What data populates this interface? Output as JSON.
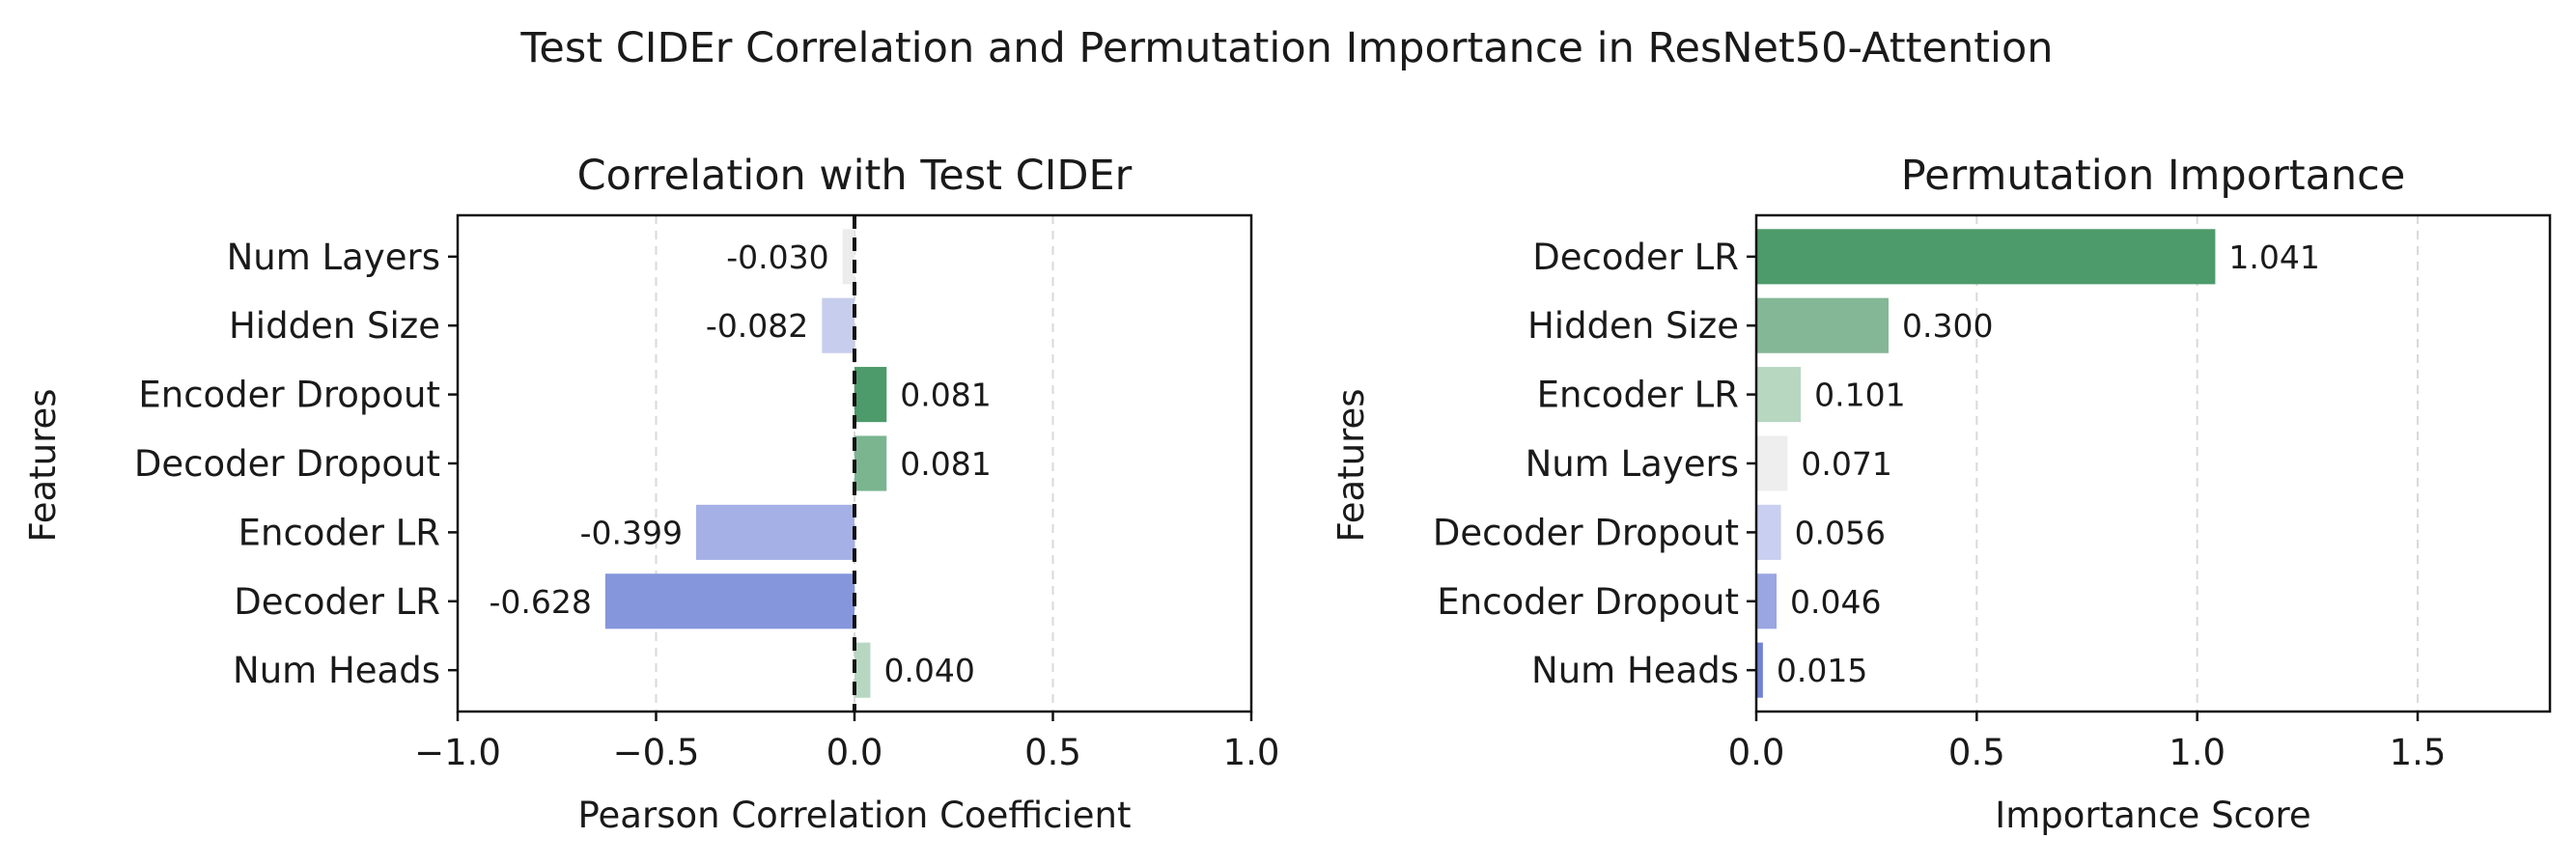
{
  "figure": {
    "title": "Test CIDEr Correlation and Permutation Importance in ResNet50-Attention"
  },
  "chart_data": [
    {
      "type": "bar",
      "orientation": "horizontal",
      "title": "Correlation with Test CIDEr",
      "xlabel": "Pearson Correlation Coefficient",
      "ylabel": "Features",
      "categories": [
        "Num Layers",
        "Hidden Size",
        "Encoder Dropout",
        "Decoder Dropout",
        "Encoder LR",
        "Decoder LR",
        "Num Heads"
      ],
      "values": [
        -0.03,
        -0.082,
        0.081,
        0.081,
        -0.399,
        -0.628,
        0.04
      ],
      "value_labels": [
        "-0.030",
        "-0.082",
        "0.081",
        "0.081",
        "-0.399",
        "-0.628",
        "0.040"
      ],
      "colors": [
        "#ececec",
        "#c7cdec",
        "#4d9a6a",
        "#7ab590",
        "#a5b0e6",
        "#8596dc",
        "#b7d7c1"
      ],
      "xlim": [
        -1.0,
        1.0
      ],
      "xticks": [
        -1.0,
        -0.5,
        0.0,
        0.5,
        1.0
      ],
      "xtick_labels": [
        "−1.0",
        "−0.5",
        "0.0",
        "0.5",
        "1.0"
      ],
      "zero_line": true,
      "grid": "vertical dashed"
    },
    {
      "type": "bar",
      "orientation": "horizontal",
      "title": "Permutation Importance",
      "xlabel": "Importance Score",
      "ylabel": "Features",
      "categories": [
        "Decoder LR",
        "Hidden Size",
        "Encoder LR",
        "Num Layers",
        "Decoder Dropout",
        "Encoder Dropout",
        "Num Heads"
      ],
      "values": [
        1.041,
        0.3,
        0.101,
        0.071,
        0.056,
        0.046,
        0.015
      ],
      "value_labels": [
        "1.041",
        "0.300",
        "0.101",
        "0.071",
        "0.056",
        "0.046",
        "0.015"
      ],
      "colors": [
        "#4d9a6a",
        "#84b796",
        "#b7d7c1",
        "#eeeeee",
        "#c9cff0",
        "#99a6e2",
        "#6f82d6"
      ],
      "xlim": [
        0.0,
        1.8
      ],
      "xticks": [
        0.0,
        0.5,
        1.0,
        1.5
      ],
      "xtick_labels": [
        "0.0",
        "0.5",
        "1.0",
        "1.5"
      ],
      "zero_line": false,
      "grid": "vertical dashed"
    }
  ]
}
